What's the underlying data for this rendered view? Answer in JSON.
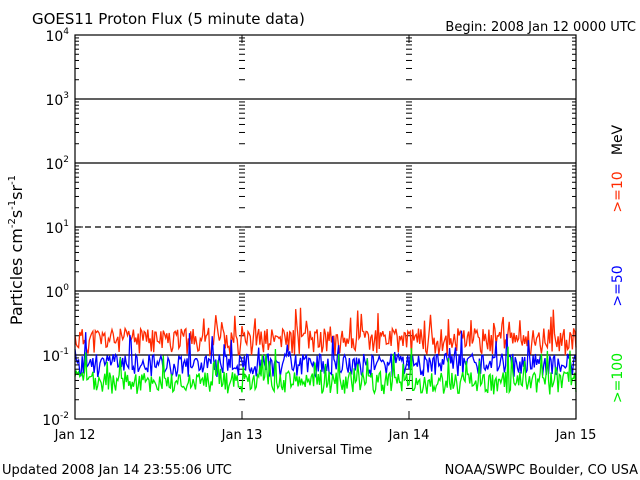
{
  "chart_data": {
    "type": "line",
    "title": "GOES11 Proton Flux (5 minute data)",
    "begin_label": "Begin: 2008 Jan 12 0000 UTC",
    "xlabel": "Universal Time",
    "ylabel_main": "Particles cm",
    "ylabel_exp1": "-2",
    "ylabel_mid1": "s",
    "ylabel_exp2": "-1",
    "ylabel_mid2": "sr",
    "ylabel_exp3": "-1",
    "yscale": "log",
    "ylim": [
      0.01,
      10000
    ],
    "x_ticks": [
      "Jan 12",
      "Jan 13",
      "Jan 14",
      "Jan 15"
    ],
    "y_ticks": [
      {
        "base": "10",
        "exp": "4"
      },
      {
        "base": "10",
        "exp": "3"
      },
      {
        "base": "10",
        "exp": "2"
      },
      {
        "base": "10",
        "exp": "1"
      },
      {
        "base": "10",
        "exp": "0"
      },
      {
        "base": "10",
        "exp": "-1"
      },
      {
        "base": "10",
        "exp": "-2"
      }
    ],
    "threshold_lines": [
      {
        "value": 1000,
        "style": "solid"
      },
      {
        "value": 100,
        "style": "solid"
      },
      {
        "value": 10,
        "style": "dashed"
      },
      {
        "value": 1,
        "style": "solid"
      },
      {
        "value": 0.1,
        "style": "solid"
      }
    ],
    "unit_label": "MeV",
    "series": [
      {
        "name": ">=10",
        "color": "#ff2a00",
        "base": 0.18,
        "spread": 0.45,
        "seed": 11
      },
      {
        "name": ">=50",
        "color": "#0000ff",
        "base": 0.075,
        "spread": 0.4,
        "seed": 23
      },
      {
        "name": ">=100",
        "color": "#00ee00",
        "base": 0.04,
        "spread": 0.4,
        "seed": 37
      }
    ]
  },
  "footer": {
    "updated": "Updated 2008 Jan 14 23:55:06 UTC",
    "source": "NOAA/SWPC Boulder, CO USA"
  }
}
